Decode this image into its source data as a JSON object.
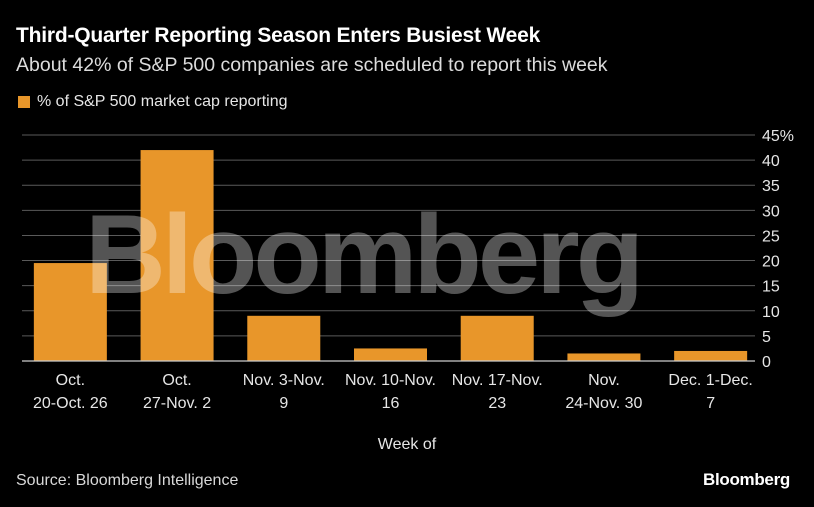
{
  "header": {
    "title": "Third-Quarter Reporting Season Enters Busiest Week",
    "subtitle": "About 42% of S&P 500 companies are scheduled to report this week"
  },
  "footer": {
    "source": "Source: Bloomberg Intelligence",
    "logo_text": "Bloomberg"
  },
  "watermark_text": "Bloomberg",
  "colors": {
    "bar": "#e8962a",
    "gridline": "#5a5a5a",
    "axis": "#cccccc",
    "background": "#000000"
  },
  "chart_data": {
    "type": "bar",
    "title": "Third-Quarter Reporting Season Enters Busiest Week",
    "subtitle": "About 42% of S&P 500 companies are scheduled to report this week",
    "xlabel": "Week of",
    "ylabel": "",
    "legend": {
      "placement": "top-left",
      "label": "% of S&P 500 market cap reporting"
    },
    "categories": [
      [
        "Oct.",
        "20-Oct. 26"
      ],
      [
        "Oct.",
        "27-Nov. 2"
      ],
      [
        "Nov. 3-Nov.",
        "9"
      ],
      [
        "Nov. 10-Nov.",
        "16"
      ],
      [
        "Nov. 17-Nov.",
        "23"
      ],
      [
        "Nov.",
        "24-Nov. 30"
      ],
      [
        "Dec. 1-Dec.",
        "7"
      ]
    ],
    "series": [
      {
        "name": "% of S&P 500 market cap reporting",
        "values": [
          19.5,
          42,
          9,
          2.5,
          9,
          1.5,
          2
        ]
      }
    ],
    "ylim": [
      0,
      45
    ],
    "yticks": [
      0,
      5,
      10,
      15,
      20,
      25,
      30,
      35,
      40,
      45
    ],
    "ytick_labels": [
      "0",
      "5",
      "10",
      "15",
      "20",
      "25",
      "30",
      "35",
      "40",
      "45%"
    ],
    "y_axis_side": "right",
    "grid": true
  }
}
